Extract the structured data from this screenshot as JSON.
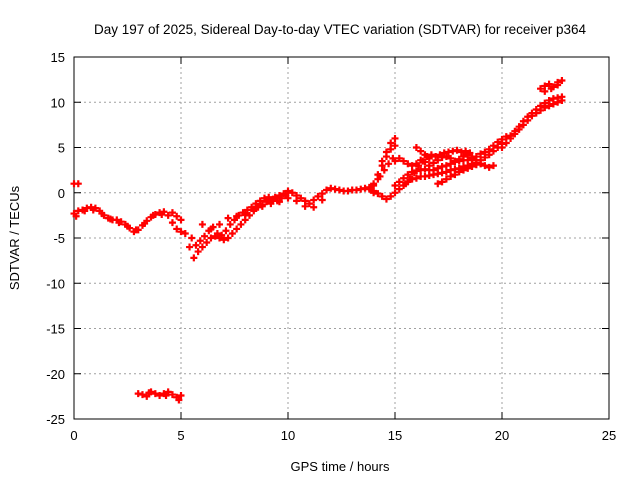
{
  "chart_data": {
    "type": "scatter",
    "title": "Day 197 of 2025, Sidereal Day-to-day VTEC variation (SDTVAR) for receiver p364",
    "xlabel": "GPS time / hours",
    "ylabel": "SDTVAR / TECUs",
    "xlim": [
      0,
      25
    ],
    "ylim": [
      -25,
      15
    ],
    "x_ticks": [
      0,
      5,
      10,
      15,
      20,
      25
    ],
    "y_ticks": [
      -25,
      -20,
      -15,
      -10,
      -5,
      0,
      5,
      10,
      15
    ],
    "grid": true,
    "marker_color": "#ff0000",
    "marker": "plus",
    "series": [
      {
        "points": [
          [
            0.0,
            1.0
          ],
          [
            0.2,
            1.0
          ],
          [
            0.0,
            -2.3
          ],
          [
            0.2,
            -2.0
          ],
          [
            0.4,
            -1.9
          ],
          [
            0.6,
            -1.7
          ],
          [
            0.8,
            -1.6
          ],
          [
            1.0,
            -1.7
          ],
          [
            1.2,
            -2.0
          ],
          [
            1.4,
            -2.5
          ],
          [
            1.6,
            -2.8
          ],
          [
            1.8,
            -3.0
          ],
          [
            2.0,
            -3.0
          ],
          [
            2.2,
            -3.2
          ],
          [
            2.4,
            -3.5
          ],
          [
            2.6,
            -3.9
          ],
          [
            2.8,
            -4.3
          ],
          [
            3.0,
            -4.1
          ],
          [
            3.2,
            -3.6
          ],
          [
            3.4,
            -3.1
          ],
          [
            3.6,
            -2.7
          ],
          [
            3.8,
            -2.4
          ],
          [
            4.0,
            -2.2
          ],
          [
            4.2,
            -2.1
          ],
          [
            4.4,
            -2.5
          ],
          [
            4.6,
            -3.3
          ],
          [
            4.8,
            -4.0
          ],
          [
            5.0,
            -4.3
          ],
          [
            0.1,
            -2.6
          ],
          [
            0.5,
            -2.0
          ],
          [
            0.9,
            -1.9
          ],
          [
            1.3,
            -2.3
          ],
          [
            1.7,
            -2.9
          ],
          [
            2.1,
            -3.3
          ],
          [
            2.5,
            -3.7
          ],
          [
            2.9,
            -4.1
          ],
          [
            3.3,
            -3.4
          ],
          [
            3.7,
            -2.5
          ],
          [
            4.1,
            -2.4
          ],
          [
            4.6,
            -2.2
          ],
          [
            4.8,
            -2.6
          ],
          [
            5.0,
            -3.0
          ],
          [
            5.2,
            -4.5
          ],
          [
            5.4,
            -6.0
          ],
          [
            5.6,
            -7.2
          ],
          [
            5.8,
            -6.5
          ],
          [
            6.0,
            -6.0
          ],
          [
            6.2,
            -5.5
          ],
          [
            6.4,
            -5.0
          ],
          [
            6.6,
            -4.8
          ],
          [
            6.8,
            -5.0
          ],
          [
            7.0,
            -5.2
          ],
          [
            7.2,
            -5.0
          ],
          [
            7.4,
            -4.5
          ],
          [
            7.6,
            -4.0
          ],
          [
            7.8,
            -3.5
          ],
          [
            8.0,
            -3.0
          ],
          [
            8.2,
            -2.5
          ],
          [
            8.4,
            -2.0
          ],
          [
            8.6,
            -1.6
          ],
          [
            8.8,
            -1.3
          ],
          [
            9.0,
            -1.0
          ],
          [
            9.2,
            -0.8
          ],
          [
            9.4,
            -0.5
          ],
          [
            9.6,
            -0.3
          ],
          [
            9.8,
            -0.1
          ],
          [
            10.0,
            0.2
          ],
          [
            10.2,
            0.0
          ],
          [
            10.4,
            -0.3
          ],
          [
            10.6,
            -0.6
          ],
          [
            10.8,
            -0.9
          ],
          [
            11.0,
            -1.2
          ],
          [
            11.2,
            -0.8
          ],
          [
            11.4,
            -0.4
          ],
          [
            11.6,
            -0.1
          ],
          [
            11.8,
            0.3
          ],
          [
            12.0,
            0.5
          ],
          [
            12.2,
            0.4
          ],
          [
            12.4,
            0.3
          ],
          [
            12.6,
            0.2
          ],
          [
            12.8,
            0.2
          ],
          [
            13.0,
            0.3
          ],
          [
            13.2,
            0.3
          ],
          [
            13.4,
            0.4
          ],
          [
            13.6,
            0.5
          ],
          [
            13.8,
            0.6
          ],
          [
            14.0,
            0.8
          ],
          [
            5.5,
            -5.0
          ],
          [
            5.7,
            -5.8
          ],
          [
            5.9,
            -5.3
          ],
          [
            6.1,
            -4.8
          ],
          [
            6.3,
            -4.2
          ],
          [
            6.5,
            -3.8
          ],
          [
            6.7,
            -4.5
          ],
          [
            6.9,
            -4.7
          ],
          [
            7.1,
            -4.2
          ],
          [
            7.3,
            -3.5
          ],
          [
            7.5,
            -3.0
          ],
          [
            7.7,
            -2.5
          ],
          [
            7.9,
            -2.2
          ],
          [
            8.1,
            -1.9
          ],
          [
            8.3,
            -1.6
          ],
          [
            8.5,
            -1.2
          ],
          [
            8.7,
            -0.9
          ],
          [
            8.9,
            -0.6
          ],
          [
            9.1,
            -0.5
          ],
          [
            9.3,
            -0.7
          ],
          [
            9.5,
            -0.9
          ],
          [
            9.7,
            -0.6
          ],
          [
            9.9,
            -0.3
          ],
          [
            6.0,
            -3.5
          ],
          [
            6.4,
            -4.0
          ],
          [
            6.8,
            -3.5
          ],
          [
            7.2,
            -2.8
          ],
          [
            7.6,
            -2.6
          ],
          [
            8.0,
            -2.4
          ],
          [
            8.4,
            -1.8
          ],
          [
            8.8,
            -1.5
          ],
          [
            9.2,
            -1.2
          ],
          [
            9.6,
            -1.0
          ],
          [
            10.0,
            -0.6
          ],
          [
            10.4,
            -0.9
          ],
          [
            10.8,
            -1.5
          ],
          [
            11.2,
            -1.6
          ],
          [
            11.6,
            -0.8
          ],
          [
            14.0,
            0.0
          ],
          [
            14.2,
            1.5
          ],
          [
            14.4,
            3.0
          ],
          [
            14.6,
            4.5
          ],
          [
            14.8,
            5.5
          ],
          [
            15.0,
            6.0
          ],
          [
            14.0,
            1.0
          ],
          [
            14.2,
            2.0
          ],
          [
            14.4,
            3.5
          ],
          [
            14.6,
            4.0
          ],
          [
            14.8,
            4.8
          ],
          [
            15.0,
            5.2
          ],
          [
            14.3,
            1.8
          ],
          [
            14.5,
            2.5
          ],
          [
            14.7,
            3.2
          ],
          [
            14.9,
            3.8
          ],
          [
            13.8,
            0.4
          ],
          [
            14.0,
            0.2
          ],
          [
            14.2,
            -0.1
          ],
          [
            14.4,
            -0.4
          ],
          [
            14.6,
            -0.7
          ],
          [
            14.8,
            -0.4
          ],
          [
            15.0,
            0.0
          ],
          [
            15.2,
            0.4
          ],
          [
            15.4,
            0.8
          ],
          [
            15.6,
            1.2
          ],
          [
            15.8,
            1.5
          ],
          [
            16.0,
            1.6
          ],
          [
            16.2,
            1.8
          ],
          [
            16.4,
            1.8
          ],
          [
            16.6,
            1.9
          ],
          [
            16.8,
            2.0
          ],
          [
            17.0,
            2.1
          ],
          [
            17.2,
            2.2
          ],
          [
            17.4,
            2.3
          ],
          [
            17.6,
            2.5
          ],
          [
            17.8,
            2.6
          ],
          [
            18.0,
            2.7
          ],
          [
            18.2,
            2.9
          ],
          [
            18.4,
            3.0
          ],
          [
            18.6,
            3.2
          ],
          [
            18.8,
            3.3
          ],
          [
            19.0,
            3.6
          ],
          [
            19.2,
            3.9
          ],
          [
            19.4,
            4.2
          ],
          [
            19.6,
            4.6
          ],
          [
            19.8,
            5.0
          ],
          [
            20.0,
            5.4
          ],
          [
            15.0,
            0.8
          ],
          [
            15.2,
            1.2
          ],
          [
            15.4,
            1.6
          ],
          [
            15.6,
            2.0
          ],
          [
            15.8,
            2.3
          ],
          [
            16.0,
            2.4
          ],
          [
            16.2,
            2.5
          ],
          [
            16.4,
            2.6
          ],
          [
            16.6,
            2.5
          ],
          [
            16.8,
            2.5
          ],
          [
            17.0,
            2.7
          ],
          [
            17.2,
            2.9
          ],
          [
            17.4,
            3.0
          ],
          [
            17.6,
            3.2
          ],
          [
            17.8,
            3.4
          ],
          [
            18.0,
            3.5
          ],
          [
            18.2,
            3.6
          ],
          [
            18.4,
            3.6
          ],
          [
            18.6,
            3.8
          ],
          [
            18.8,
            4.0
          ],
          [
            19.0,
            4.3
          ],
          [
            19.2,
            4.5
          ],
          [
            19.4,
            4.8
          ],
          [
            15.0,
            3.5
          ],
          [
            15.2,
            3.8
          ],
          [
            15.4,
            3.5
          ],
          [
            15.6,
            3.2
          ],
          [
            15.8,
            3.0
          ],
          [
            16.0,
            3.2
          ],
          [
            16.2,
            3.6
          ],
          [
            16.4,
            3.4
          ],
          [
            16.6,
            3.0
          ],
          [
            16.8,
            3.3
          ],
          [
            17.0,
            3.6
          ],
          [
            17.2,
            3.9
          ],
          [
            17.4,
            4.0
          ],
          [
            17.6,
            3.8
          ],
          [
            17.8,
            3.5
          ],
          [
            18.0,
            3.7
          ],
          [
            18.2,
            4.0
          ],
          [
            18.4,
            4.2
          ],
          [
            18.6,
            3.9
          ],
          [
            18.8,
            3.6
          ],
          [
            19.0,
            3.2
          ],
          [
            19.2,
            3.0
          ],
          [
            19.4,
            2.8
          ],
          [
            19.6,
            3.0
          ],
          [
            15.5,
            1.0
          ],
          [
            15.7,
            1.5
          ],
          [
            15.9,
            2.2
          ],
          [
            16.1,
            3.0
          ],
          [
            16.3,
            3.5
          ],
          [
            16.5,
            4.0
          ],
          [
            16.7,
            4.2
          ],
          [
            16.9,
            4.0
          ],
          [
            17.1,
            4.2
          ],
          [
            17.3,
            4.4
          ],
          [
            17.5,
            4.5
          ],
          [
            17.7,
            4.6
          ],
          [
            17.9,
            4.7
          ],
          [
            18.1,
            4.5
          ],
          [
            18.3,
            4.6
          ],
          [
            18.5,
            4.4
          ],
          [
            16.0,
            5.0
          ],
          [
            16.2,
            4.6
          ],
          [
            16.4,
            4.2
          ],
          [
            16.6,
            3.8
          ],
          [
            17.0,
            1.0
          ],
          [
            17.2,
            1.2
          ],
          [
            17.4,
            1.5
          ],
          [
            17.6,
            1.8
          ],
          [
            17.8,
            2.0
          ],
          [
            18.0,
            2.3
          ],
          [
            18.2,
            2.5
          ],
          [
            18.4,
            2.7
          ],
          [
            18.6,
            2.9
          ],
          [
            18.8,
            3.1
          ],
          [
            19.0,
            3.2
          ],
          [
            20.0,
            5.0
          ],
          [
            20.2,
            5.5
          ],
          [
            20.4,
            6.0
          ],
          [
            20.6,
            6.5
          ],
          [
            20.8,
            7.0
          ],
          [
            21.0,
            7.5
          ],
          [
            21.2,
            8.0
          ],
          [
            21.4,
            8.5
          ],
          [
            21.6,
            8.8
          ],
          [
            21.8,
            9.1
          ],
          [
            22.0,
            9.4
          ],
          [
            22.2,
            9.6
          ],
          [
            22.4,
            9.8
          ],
          [
            22.6,
            10.0
          ],
          [
            22.8,
            10.2
          ],
          [
            20.4,
            6.3
          ],
          [
            20.6,
            6.8
          ],
          [
            20.8,
            7.3
          ],
          [
            21.0,
            7.9
          ],
          [
            21.2,
            8.4
          ],
          [
            21.4,
            8.8
          ],
          [
            21.6,
            9.2
          ],
          [
            21.8,
            9.6
          ],
          [
            22.0,
            9.9
          ],
          [
            22.2,
            10.2
          ],
          [
            22.4,
            10.4
          ],
          [
            22.6,
            10.5
          ],
          [
            22.8,
            10.6
          ],
          [
            19.6,
            5.2
          ],
          [
            19.8,
            5.6
          ],
          [
            20.0,
            5.9
          ],
          [
            20.2,
            6.2
          ],
          [
            21.8,
            11.5
          ],
          [
            22.0,
            11.8
          ],
          [
            22.2,
            12.0
          ],
          [
            22.4,
            11.7
          ],
          [
            22.6,
            12.2
          ],
          [
            22.8,
            12.4
          ],
          [
            22.0,
            11.2
          ],
          [
            22.3,
            11.5
          ],
          [
            22.6,
            11.9
          ],
          [
            3.0,
            -22.2
          ],
          [
            3.2,
            -22.3
          ],
          [
            3.4,
            -22.5
          ],
          [
            3.6,
            -22.0
          ],
          [
            3.8,
            -22.2
          ],
          [
            4.0,
            -22.4
          ],
          [
            4.2,
            -22.2
          ],
          [
            4.4,
            -22.0
          ],
          [
            4.6,
            -22.3
          ],
          [
            4.8,
            -22.6
          ],
          [
            5.0,
            -22.4
          ],
          [
            4.9,
            -22.9
          ],
          [
            3.5,
            -22.1
          ],
          [
            4.3,
            -22.4
          ]
        ]
      }
    ]
  }
}
